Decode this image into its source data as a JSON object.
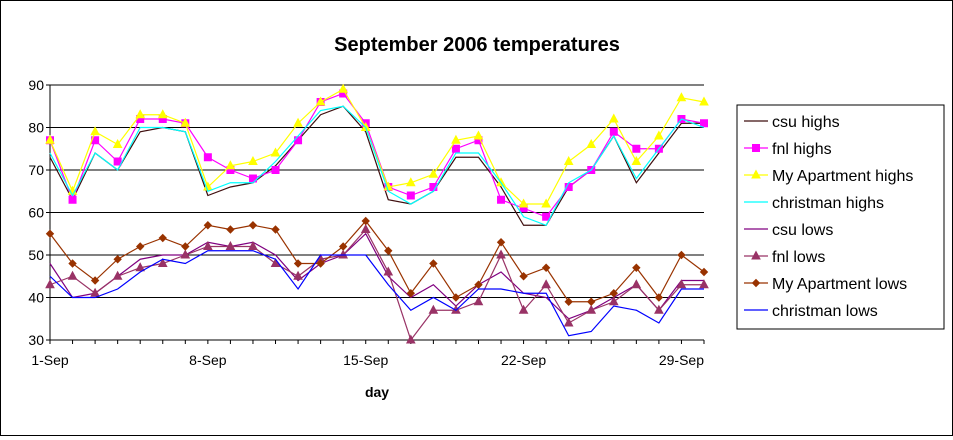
{
  "chart_data": {
    "type": "line",
    "title": "September 2006 temperatures",
    "xlabel": "day",
    "ylabel": "",
    "ylim": [
      30,
      90
    ],
    "yticks": [
      "30",
      "40",
      "50",
      "60",
      "70",
      "80",
      "90"
    ],
    "yticks_values": [
      30,
      40,
      50,
      60,
      70,
      80,
      90
    ],
    "xticks": [
      {
        "label": "1-Sep",
        "day": 1
      },
      {
        "label": "8-Sep",
        "day": 8
      },
      {
        "label": "15-Sep",
        "day": 15
      },
      {
        "label": "22-Sep",
        "day": 22
      },
      {
        "label": "29-Sep",
        "day": 29
      }
    ],
    "x": [
      1,
      2,
      3,
      4,
      5,
      6,
      7,
      8,
      9,
      10,
      11,
      12,
      13,
      14,
      15,
      16,
      17,
      18,
      19,
      20,
      21,
      22,
      23,
      24,
      25,
      26,
      27,
      28,
      29,
      30
    ],
    "grid": true,
    "legend_position": "right",
    "plot_area_color": "#ffffff",
    "series": [
      {
        "name": "csu highs",
        "color": "#3f0f0f",
        "marker": "none",
        "values": [
          73,
          63,
          74,
          70,
          79,
          80,
          79,
          64,
          66,
          67,
          71,
          77,
          83,
          85,
          79,
          63,
          62,
          65,
          73,
          73,
          66,
          57,
          57,
          66,
          70,
          78,
          67,
          74,
          81,
          81
        ]
      },
      {
        "name": "fnl highs",
        "color": "#ff00ff",
        "marker": "square",
        "values": [
          77,
          63,
          77,
          72,
          82,
          82,
          81,
          73,
          70,
          68,
          70,
          77,
          86,
          88,
          81,
          66,
          64,
          66,
          75,
          77,
          63,
          61,
          59,
          66,
          70,
          79,
          75,
          75,
          82,
          81
        ]
      },
      {
        "name": "My Apartment highs",
        "color": "#ffff00",
        "marker": "triangle",
        "values": [
          77,
          65,
          79,
          76,
          83,
          83,
          81,
          66,
          71,
          72,
          74,
          81,
          86,
          89,
          80,
          66,
          67,
          69,
          77,
          78,
          67,
          62,
          62,
          72,
          76,
          82,
          72,
          78,
          87,
          86
        ]
      },
      {
        "name": "christman highs",
        "color": "#00ffff",
        "marker": "none",
        "values": [
          74,
          64,
          74,
          70,
          80,
          80,
          79,
          65,
          67,
          67,
          72,
          78,
          84,
          85,
          80,
          65,
          62,
          65,
          74,
          74,
          67,
          59,
          57,
          67,
          70,
          78,
          68,
          75,
          82,
          80
        ]
      },
      {
        "name": "csu lows",
        "color": "#800080",
        "marker": "none",
        "values": [
          48,
          40,
          41,
          45,
          49,
          50,
          50,
          53,
          52,
          53,
          50,
          44,
          48,
          50,
          55,
          45,
          40,
          43,
          38,
          43,
          46,
          41,
          40,
          35,
          37,
          40,
          43,
          37,
          44,
          44
        ]
      },
      {
        "name": "fnl lows",
        "color": "#993366",
        "marker": "triangle",
        "values": [
          43,
          45,
          41,
          45,
          47,
          48,
          50,
          52,
          52,
          52,
          48,
          45,
          49,
          50,
          56,
          46,
          30,
          37,
          37,
          39,
          50,
          37,
          43,
          34,
          37,
          39,
          43,
          37,
          43,
          43
        ]
      },
      {
        "name": "My Apartment lows",
        "color": "#993300",
        "marker": "diamond",
        "values": [
          55,
          48,
          44,
          49,
          52,
          54,
          52,
          57,
          56,
          57,
          56,
          48,
          48,
          52,
          58,
          51,
          41,
          48,
          40,
          43,
          53,
          45,
          47,
          39,
          39,
          41,
          47,
          40,
          50,
          46
        ]
      },
      {
        "name": "christman lows",
        "color": "#0000ff",
        "marker": "none",
        "values": [
          45,
          40,
          40,
          42,
          46,
          49,
          48,
          51,
          51,
          51,
          49,
          42,
          50,
          50,
          50,
          43,
          37,
          40,
          37,
          42,
          42,
          41,
          41,
          31,
          32,
          38,
          37,
          34,
          42,
          42
        ]
      }
    ]
  }
}
